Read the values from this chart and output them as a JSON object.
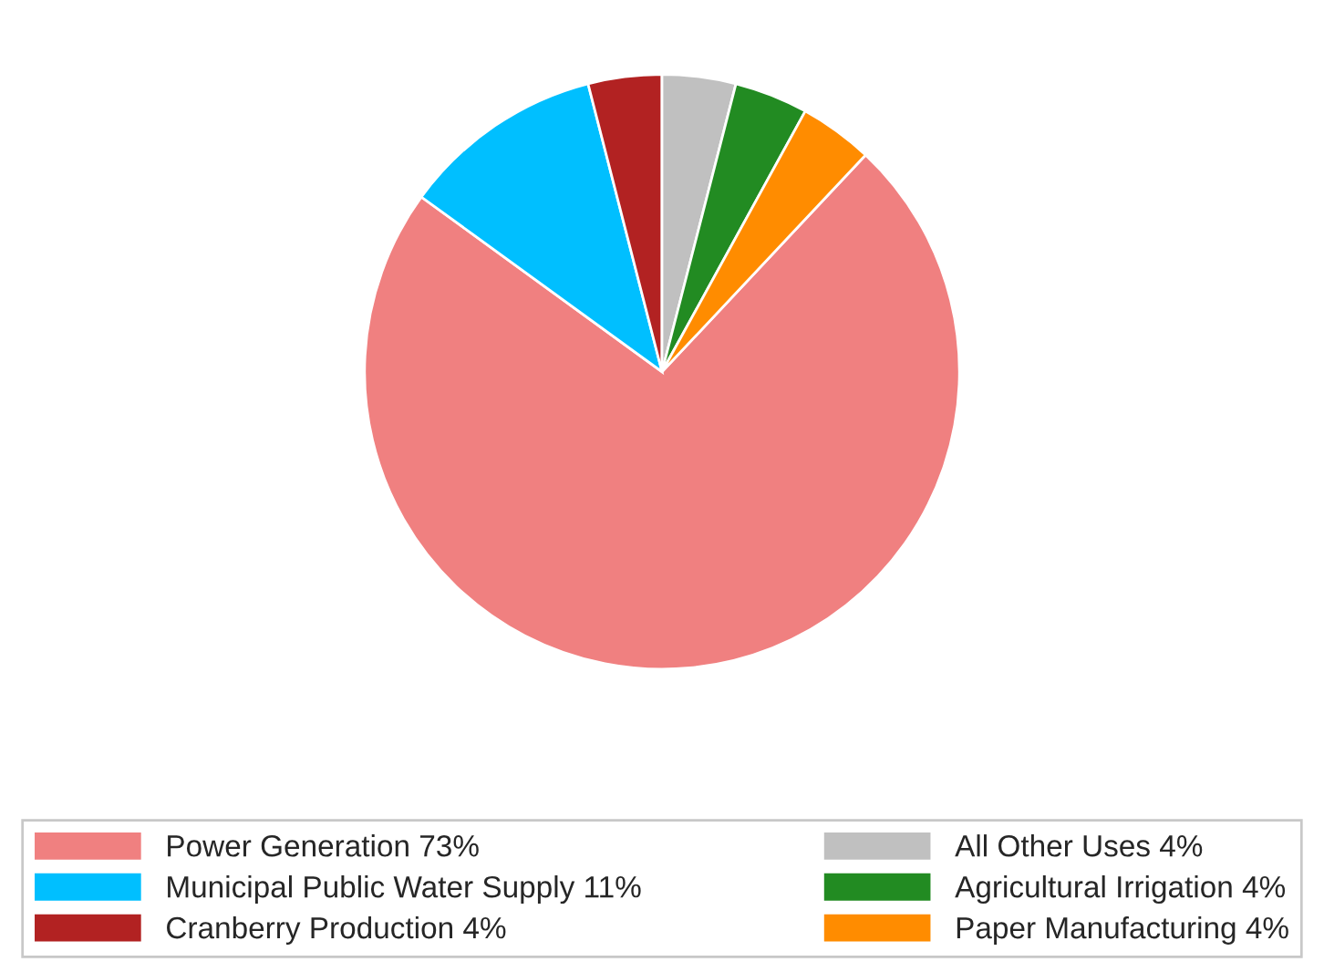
{
  "chart_data": {
    "type": "pie",
    "categories": [
      "Power Generation 73%",
      "Municipal Public Water Supply 11%",
      "Cranberry Production 4%",
      "All Other Uses 4%",
      "Agricultural Irrigation 4%",
      "Paper Manufacturing 4%"
    ],
    "values": [
      73,
      11,
      4,
      4,
      4,
      4
    ],
    "colors": [
      "#f08080",
      "#00bfff",
      "#b22222",
      "#c0c0c0",
      "#228b22",
      "#ff8c00"
    ],
    "legend": "bottom"
  }
}
